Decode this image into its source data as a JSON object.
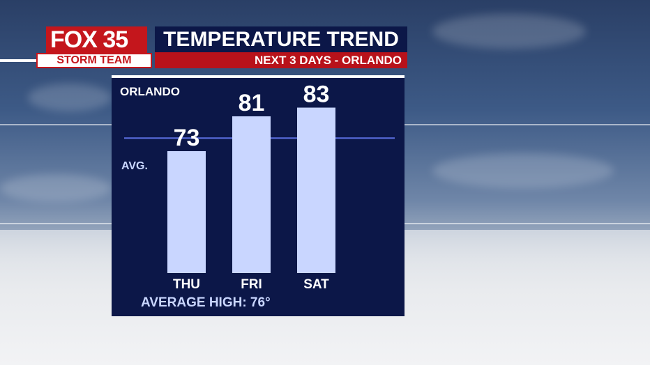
{
  "branding": {
    "logo_fox": "FOX 35",
    "logo_team": "STORM TEAM"
  },
  "header": {
    "title": "TEMPERATURE TREND",
    "subtitle": "NEXT 3 DAYS - ORLANDO"
  },
  "panel": {
    "city": "ORLANDO",
    "avg_label": "AVG.",
    "average_high_text": "AVERAGE HIGH: 76°"
  },
  "colors": {
    "panel_bg": "#0c1748",
    "bar_fill": "#c9d6ff",
    "avg_line": "#5b6ee0",
    "title_bg": "#0c1748",
    "subtitle_bg": "#b8121a"
  },
  "chart_data": {
    "type": "bar",
    "title": "TEMPERATURE TREND",
    "subtitle": "NEXT 3 DAYS - ORLANDO",
    "categories": [
      "THU",
      "FRI",
      "SAT"
    ],
    "values": [
      73,
      81,
      83
    ],
    "value_labels": [
      "73",
      "81",
      "83"
    ],
    "reference_line": {
      "label": "AVG.",
      "value": 76
    },
    "ylim": [
      45,
      85
    ],
    "xlabel": "",
    "ylabel": "",
    "grid": false,
    "legend": "none"
  }
}
